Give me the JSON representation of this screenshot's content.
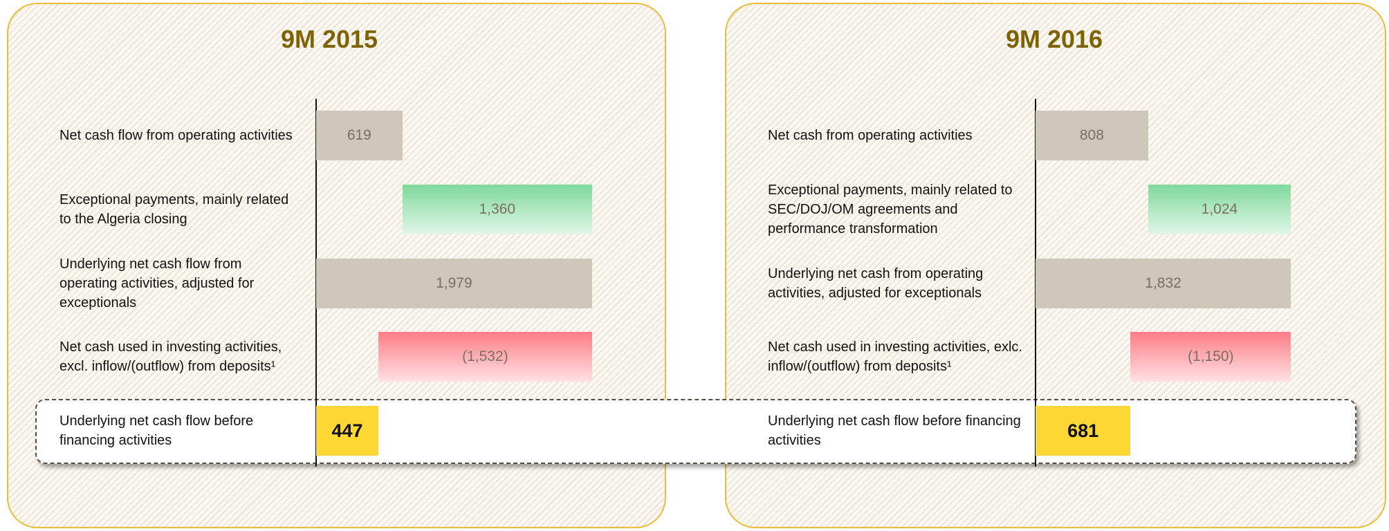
{
  "chart_data": [
    {
      "type": "waterfall",
      "orientation": "h",
      "title": "9M 2015",
      "categories": [
        "Net cash flow from operating activities",
        "Exceptional payments, mainly related to the Algeria closing",
        "Underlying net cash flow from operating activities, adjusted for exceptionals",
        "Net cash used in investing activities, excl. inflow/(outflow) from deposits¹",
        "Underlying net cash flow before financing activities"
      ],
      "values": [
        619,
        1360,
        1979,
        -1532,
        447
      ],
      "value_labels": [
        "619",
        "1,360",
        "1,979",
        "(1,532)",
        "447"
      ],
      "measure": [
        "absolute",
        "relative",
        "total",
        "relative",
        "total"
      ],
      "colors": [
        "#cfc7ba",
        "#7fd99b",
        "#cfc7ba",
        "#ff7d86",
        "#fdd835"
      ],
      "xlim": [
        0,
        2000
      ]
    },
    {
      "type": "waterfall",
      "orientation": "h",
      "title": "9M 2016",
      "categories": [
        "Net cash from operating activities",
        "Exceptional payments, mainly related to SEC/DOJ/OM agreements and performance transformation",
        "Underlying net cash from operating activities, adjusted for exceptionals",
        "Net cash used in investing activities, exlc. inflow/(outflow) from deposits¹",
        "Underlying net cash flow before financing activities"
      ],
      "values": [
        808,
        1024,
        1832,
        -1150,
        681
      ],
      "value_labels": [
        "808",
        "1,024",
        "1,832",
        "(1,150)",
        "681"
      ],
      "measure": [
        "absolute",
        "relative",
        "total",
        "relative",
        "total"
      ],
      "colors": [
        "#cfc7ba",
        "#7fd99b",
        "#cfc7ba",
        "#ff7d86",
        "#fdd835"
      ],
      "xlim": [
        0,
        2000
      ]
    }
  ]
}
